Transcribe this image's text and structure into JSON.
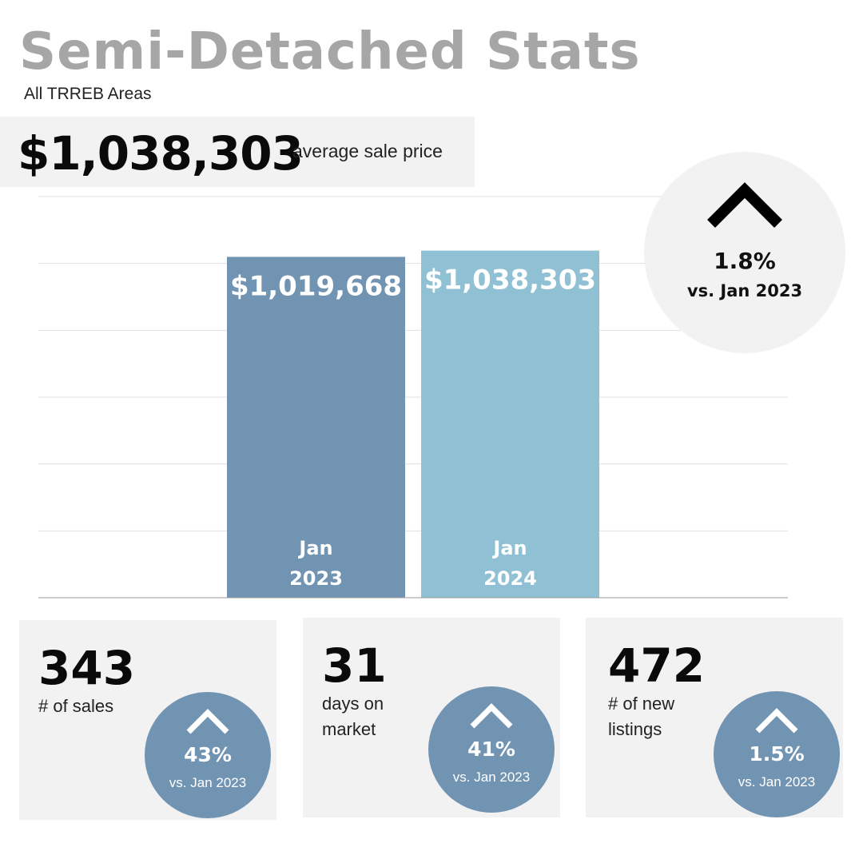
{
  "title": "Semi-Detached Stats",
  "subtitle": "All TRREB Areas",
  "headline": {
    "value": "$1,038,303",
    "label": "average sale price"
  },
  "change": {
    "direction": "up",
    "percent": "1.8%",
    "comparison": "vs. Jan 2023"
  },
  "chart_data": {
    "type": "bar",
    "categories": [
      "Jan 2023",
      "Jan 2024"
    ],
    "category_lines": [
      [
        "Jan",
        "2023"
      ],
      [
        "Jan",
        "2024"
      ]
    ],
    "values": [
      1019668,
      1038303
    ],
    "value_labels": [
      "$1,019,668",
      "$1,038,303"
    ],
    "colors": [
      "#7294b3",
      "#8fc0d4"
    ],
    "title": "",
    "xlabel": "",
    "ylabel": "",
    "ylim": [
      0,
      1200000
    ],
    "grid": true,
    "legend": "none"
  },
  "stats": [
    {
      "value": "343",
      "label": "# of sales",
      "change": "43%",
      "comparison": "vs. Jan 2023",
      "direction": "up"
    },
    {
      "value": "31",
      "label": "days on market",
      "change": "41%",
      "comparison": "vs. Jan 2023",
      "direction": "up"
    },
    {
      "value": "472",
      "label": "# of new listings",
      "change": "1.5%",
      "comparison": "vs. Jan 2023",
      "direction": "up"
    }
  ],
  "colors": {
    "title": "#a6a6a6",
    "panel": "#f2f2f2",
    "accent": "#7294b3"
  },
  "icons": {
    "change": "chevron-up-icon"
  }
}
